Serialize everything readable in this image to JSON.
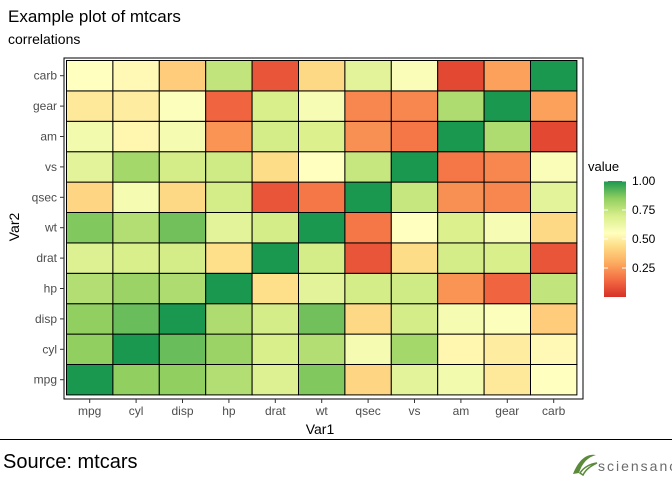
{
  "chart_data": {
    "type": "heatmap",
    "title": "Example plot of mtcars",
    "subtitle": "correlations",
    "xlabel": "Var1",
    "ylabel": "Var2",
    "x_categories": [
      "mpg",
      "cyl",
      "disp",
      "hp",
      "drat",
      "wt",
      "qsec",
      "vs",
      "am",
      "gear",
      "carb"
    ],
    "y_categories": [
      "mpg",
      "cyl",
      "disp",
      "hp",
      "drat",
      "wt",
      "qsec",
      "vs",
      "am",
      "gear",
      "carb"
    ],
    "values": [
      [
        1.0,
        0.85,
        0.85,
        0.78,
        0.68,
        0.87,
        0.42,
        0.66,
        0.6,
        0.48,
        0.55
      ],
      [
        0.85,
        1.0,
        0.9,
        0.83,
        0.7,
        0.78,
        0.59,
        0.81,
        0.52,
        0.49,
        0.53
      ],
      [
        0.85,
        0.9,
        1.0,
        0.79,
        0.71,
        0.89,
        0.43,
        0.71,
        0.59,
        0.56,
        0.39
      ],
      [
        0.78,
        0.83,
        0.79,
        1.0,
        0.45,
        0.66,
        0.71,
        0.72,
        0.24,
        0.13,
        0.75
      ],
      [
        0.68,
        0.7,
        0.71,
        0.45,
        1.0,
        0.71,
        0.09,
        0.44,
        0.71,
        0.7,
        0.09
      ],
      [
        0.87,
        0.78,
        0.89,
        0.66,
        0.71,
        1.0,
        0.17,
        0.55,
        0.69,
        0.58,
        0.43
      ],
      [
        0.42,
        0.59,
        0.43,
        0.71,
        0.09,
        0.17,
        1.0,
        0.74,
        0.23,
        0.21,
        0.66
      ],
      [
        0.66,
        0.81,
        0.71,
        0.72,
        0.44,
        0.55,
        0.74,
        1.0,
        0.17,
        0.21,
        0.57
      ],
      [
        0.6,
        0.52,
        0.59,
        0.24,
        0.71,
        0.69,
        0.23,
        0.17,
        1.0,
        0.79,
        0.06
      ],
      [
        0.48,
        0.49,
        0.56,
        0.13,
        0.7,
        0.58,
        0.21,
        0.21,
        0.79,
        1.0,
        0.27
      ],
      [
        0.55,
        0.53,
        0.39,
        0.75,
        0.09,
        0.43,
        0.66,
        0.57,
        0.06,
        0.27,
        1.0
      ]
    ],
    "value_range": [
      0.0,
      1.0
    ],
    "colorscale": "RdYlGn",
    "legend": {
      "title": "value",
      "placement": "right",
      "ticks": [
        0.25,
        0.5,
        0.75,
        1.0
      ],
      "tick_labels": [
        "0.25",
        "0.50",
        "0.75",
        "1.00"
      ]
    },
    "grid": false
  },
  "footer": {
    "source": "Source: mtcars",
    "logo_text": "sciensano"
  },
  "colors": {
    "cell_border": "#000000",
    "axis_text": "#4d4d4d",
    "logo_green": "#5a8a3a",
    "logo_text": "#6b6b6b"
  }
}
